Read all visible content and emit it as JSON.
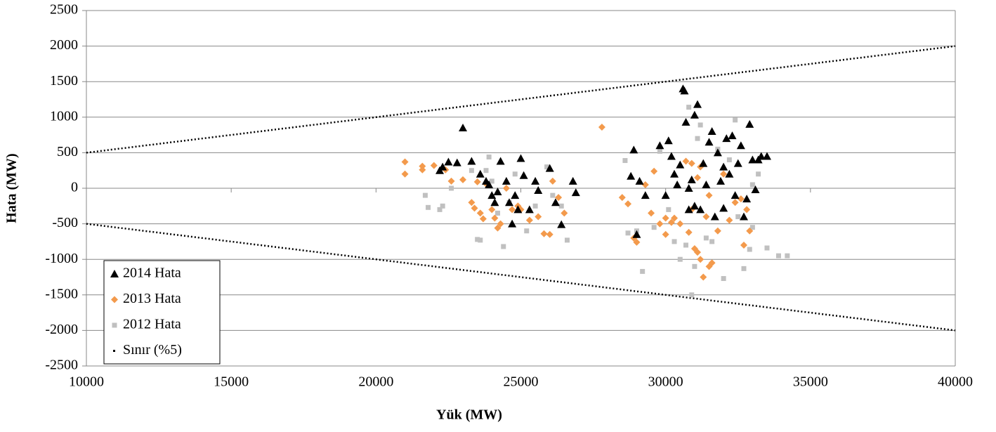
{
  "chart_data": {
    "type": "scatter",
    "xlabel": "Yük (MW)",
    "ylabel": "Hata (MW)",
    "xlim": [
      10000,
      40000
    ],
    "xticks": [
      10000,
      15000,
      20000,
      25000,
      30000,
      35000,
      40000
    ],
    "ylim": [
      -2500,
      2500
    ],
    "yticks": [
      -2500,
      -2000,
      -1500,
      -1000,
      -500,
      0,
      500,
      1000,
      1500,
      2000,
      2500
    ],
    "grid": true,
    "legend": "lower left",
    "series": [
      {
        "name": "2014 Hata",
        "color": "#000000",
        "marker": "triangle",
        "x": [
          22200,
          22300,
          22500,
          22800,
          23000,
          23300,
          23600,
          23800,
          23900,
          24000,
          24100,
          24200,
          24300,
          24500,
          24600,
          24700,
          24800,
          24900,
          25000,
          25100,
          25300,
          25500,
          25600,
          26000,
          26200,
          26400,
          26800,
          26900,
          28800,
          28900,
          29000,
          29100,
          29300,
          29800,
          30000,
          30100,
          30200,
          30300,
          30400,
          30500,
          30600,
          30650,
          30700,
          30800,
          30900,
          31000,
          31100,
          31200,
          31300,
          31400,
          31500,
          31600,
          31700,
          31800,
          31900,
          32000,
          32100,
          32200,
          32300,
          32400,
          32500,
          32600,
          32700,
          32800,
          32900,
          33000,
          33100,
          33200,
          33300,
          33500,
          30800,
          31000,
          32000
        ],
        "values": [
          250,
          300,
          370,
          360,
          850,
          380,
          200,
          100,
          50,
          -100,
          -200,
          -50,
          380,
          100,
          -200,
          -500,
          -100,
          -300,
          420,
          180,
          -300,
          100,
          -30,
          280,
          -200,
          -510,
          100,
          -60,
          170,
          540,
          -650,
          100,
          -100,
          600,
          -100,
          670,
          450,
          200,
          50,
          330,
          1400,
          1370,
          930,
          0,
          120,
          1030,
          1180,
          -300,
          350,
          50,
          650,
          800,
          -400,
          500,
          100,
          300,
          700,
          200,
          740,
          -100,
          350,
          600,
          -400,
          -150,
          900,
          400,
          -20,
          400,
          450,
          450,
          -300,
          -250,
          -280
        ]
      },
      {
        "name": "2013 Hata",
        "color": "#f39a4c",
        "marker": "diamond",
        "x": [
          21000,
          21000,
          21600,
          21600,
          22000,
          22400,
          22600,
          23000,
          23300,
          23400,
          23500,
          23600,
          23700,
          23800,
          24000,
          24100,
          24200,
          24300,
          24500,
          24700,
          24900,
          25000,
          25300,
          25600,
          25800,
          26000,
          26100,
          26300,
          26500,
          27800,
          28500,
          28700,
          28900,
          29000,
          29300,
          29500,
          29600,
          29800,
          30000,
          30000,
          30200,
          30300,
          30500,
          30700,
          30800,
          30900,
          31000,
          31100,
          31200,
          31300,
          31100,
          31200,
          31400,
          31500,
          31600,
          31800,
          32000,
          32200,
          32400,
          32600,
          32700,
          32800,
          32900,
          31500,
          30900
        ],
        "values": [
          370,
          200,
          310,
          260,
          320,
          260,
          100,
          120,
          -200,
          -280,
          90,
          -350,
          -430,
          60,
          -300,
          -420,
          -560,
          -500,
          0,
          -300,
          -250,
          -300,
          -450,
          -400,
          -640,
          -650,
          100,
          -130,
          -350,
          860,
          -130,
          -220,
          -700,
          -760,
          50,
          -350,
          240,
          -500,
          -420,
          -650,
          -480,
          -420,
          -500,
          380,
          -620,
          350,
          -850,
          -900,
          -1000,
          -1250,
          150,
          300,
          -400,
          -1100,
          -1050,
          -600,
          200,
          -450,
          -200,
          -150,
          -800,
          -300,
          -600,
          -100,
          -300
        ]
      },
      {
        "name": "2012 Hata",
        "color": "#c0c0c0",
        "marker": "square",
        "x": [
          21700,
          21800,
          22200,
          22300,
          22600,
          23300,
          23500,
          23600,
          23800,
          23900,
          24000,
          24200,
          24400,
          24600,
          24800,
          25200,
          25500,
          25900,
          26100,
          26400,
          26600,
          28600,
          28700,
          29000,
          29200,
          29600,
          29800,
          30100,
          30300,
          30500,
          30700,
          30800,
          30900,
          31000,
          31100,
          31200,
          31400,
          31600,
          31800,
          32000,
          32200,
          32400,
          32500,
          32700,
          32900,
          33000,
          33200,
          33500,
          33900,
          34200,
          33000
        ],
        "values": [
          -100,
          -270,
          -300,
          -250,
          0,
          250,
          -720,
          -730,
          250,
          440,
          100,
          -350,
          -820,
          -200,
          200,
          -600,
          -250,
          300,
          -100,
          -250,
          -730,
          390,
          -630,
          -600,
          -1170,
          -550,
          520,
          -300,
          -750,
          -1000,
          -800,
          1140,
          -1500,
          -1100,
          700,
          890,
          -700,
          -750,
          550,
          -1270,
          400,
          960,
          -400,
          -1130,
          -860,
          -550,
          200,
          -840,
          -950,
          -950,
          50
        ]
      },
      {
        "name": "Sınır (%5)",
        "color": "#000000",
        "marker": "dotted-line",
        "x": [
          10000,
          40000,
          null,
          10000,
          40000
        ],
        "values": [
          500,
          2000,
          null,
          -500,
          -2000
        ]
      }
    ]
  }
}
